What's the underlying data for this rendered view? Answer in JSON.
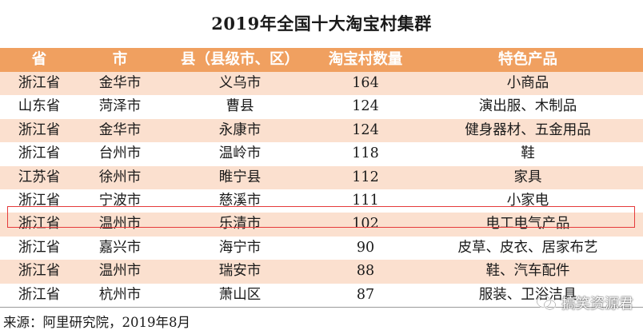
{
  "title": "2019年全国十大淘宝村集群",
  "table": {
    "headers": [
      "省",
      "市",
      "县（县级市、区）",
      "淘宝村数量",
      "特色产品"
    ],
    "rows": [
      [
        "浙江省",
        "金华市",
        "义乌市",
        "164",
        "小商品"
      ],
      [
        "山东省",
        "菏泽市",
        "曹县",
        "124",
        "演出服、木制品"
      ],
      [
        "浙江省",
        "金华市",
        "永康市",
        "124",
        "健身器材、五金用品"
      ],
      [
        "浙江省",
        "台州市",
        "温岭市",
        "118",
        "鞋"
      ],
      [
        "江苏省",
        "徐州市",
        "睢宁县",
        "112",
        "家具"
      ],
      [
        "浙江省",
        "宁波市",
        "慈溪市",
        "111",
        "小家电"
      ],
      [
        "浙江省",
        "温州市",
        "乐清市",
        "102",
        "电工电气产品"
      ],
      [
        "浙江省",
        "嘉兴市",
        "海宁市",
        "90",
        "皮草、皮衣、居家布艺"
      ],
      [
        "浙江省",
        "温州市",
        "瑞安市",
        "88",
        "鞋、汽车配件"
      ],
      [
        "浙江省",
        "杭州市",
        "萧山区",
        "87",
        "服装、卫浴洁具"
      ]
    ],
    "highlighted_row": 6
  },
  "colors": {
    "header_bg": "#f0a060",
    "stripe_bg": "#fbe0cf",
    "highlight_border": "#e53b3b"
  },
  "source": "来源：阿里研究院，2019年8月",
  "watermark": {
    "icon": "wechat-icon",
    "text": "搞笑资源君"
  }
}
